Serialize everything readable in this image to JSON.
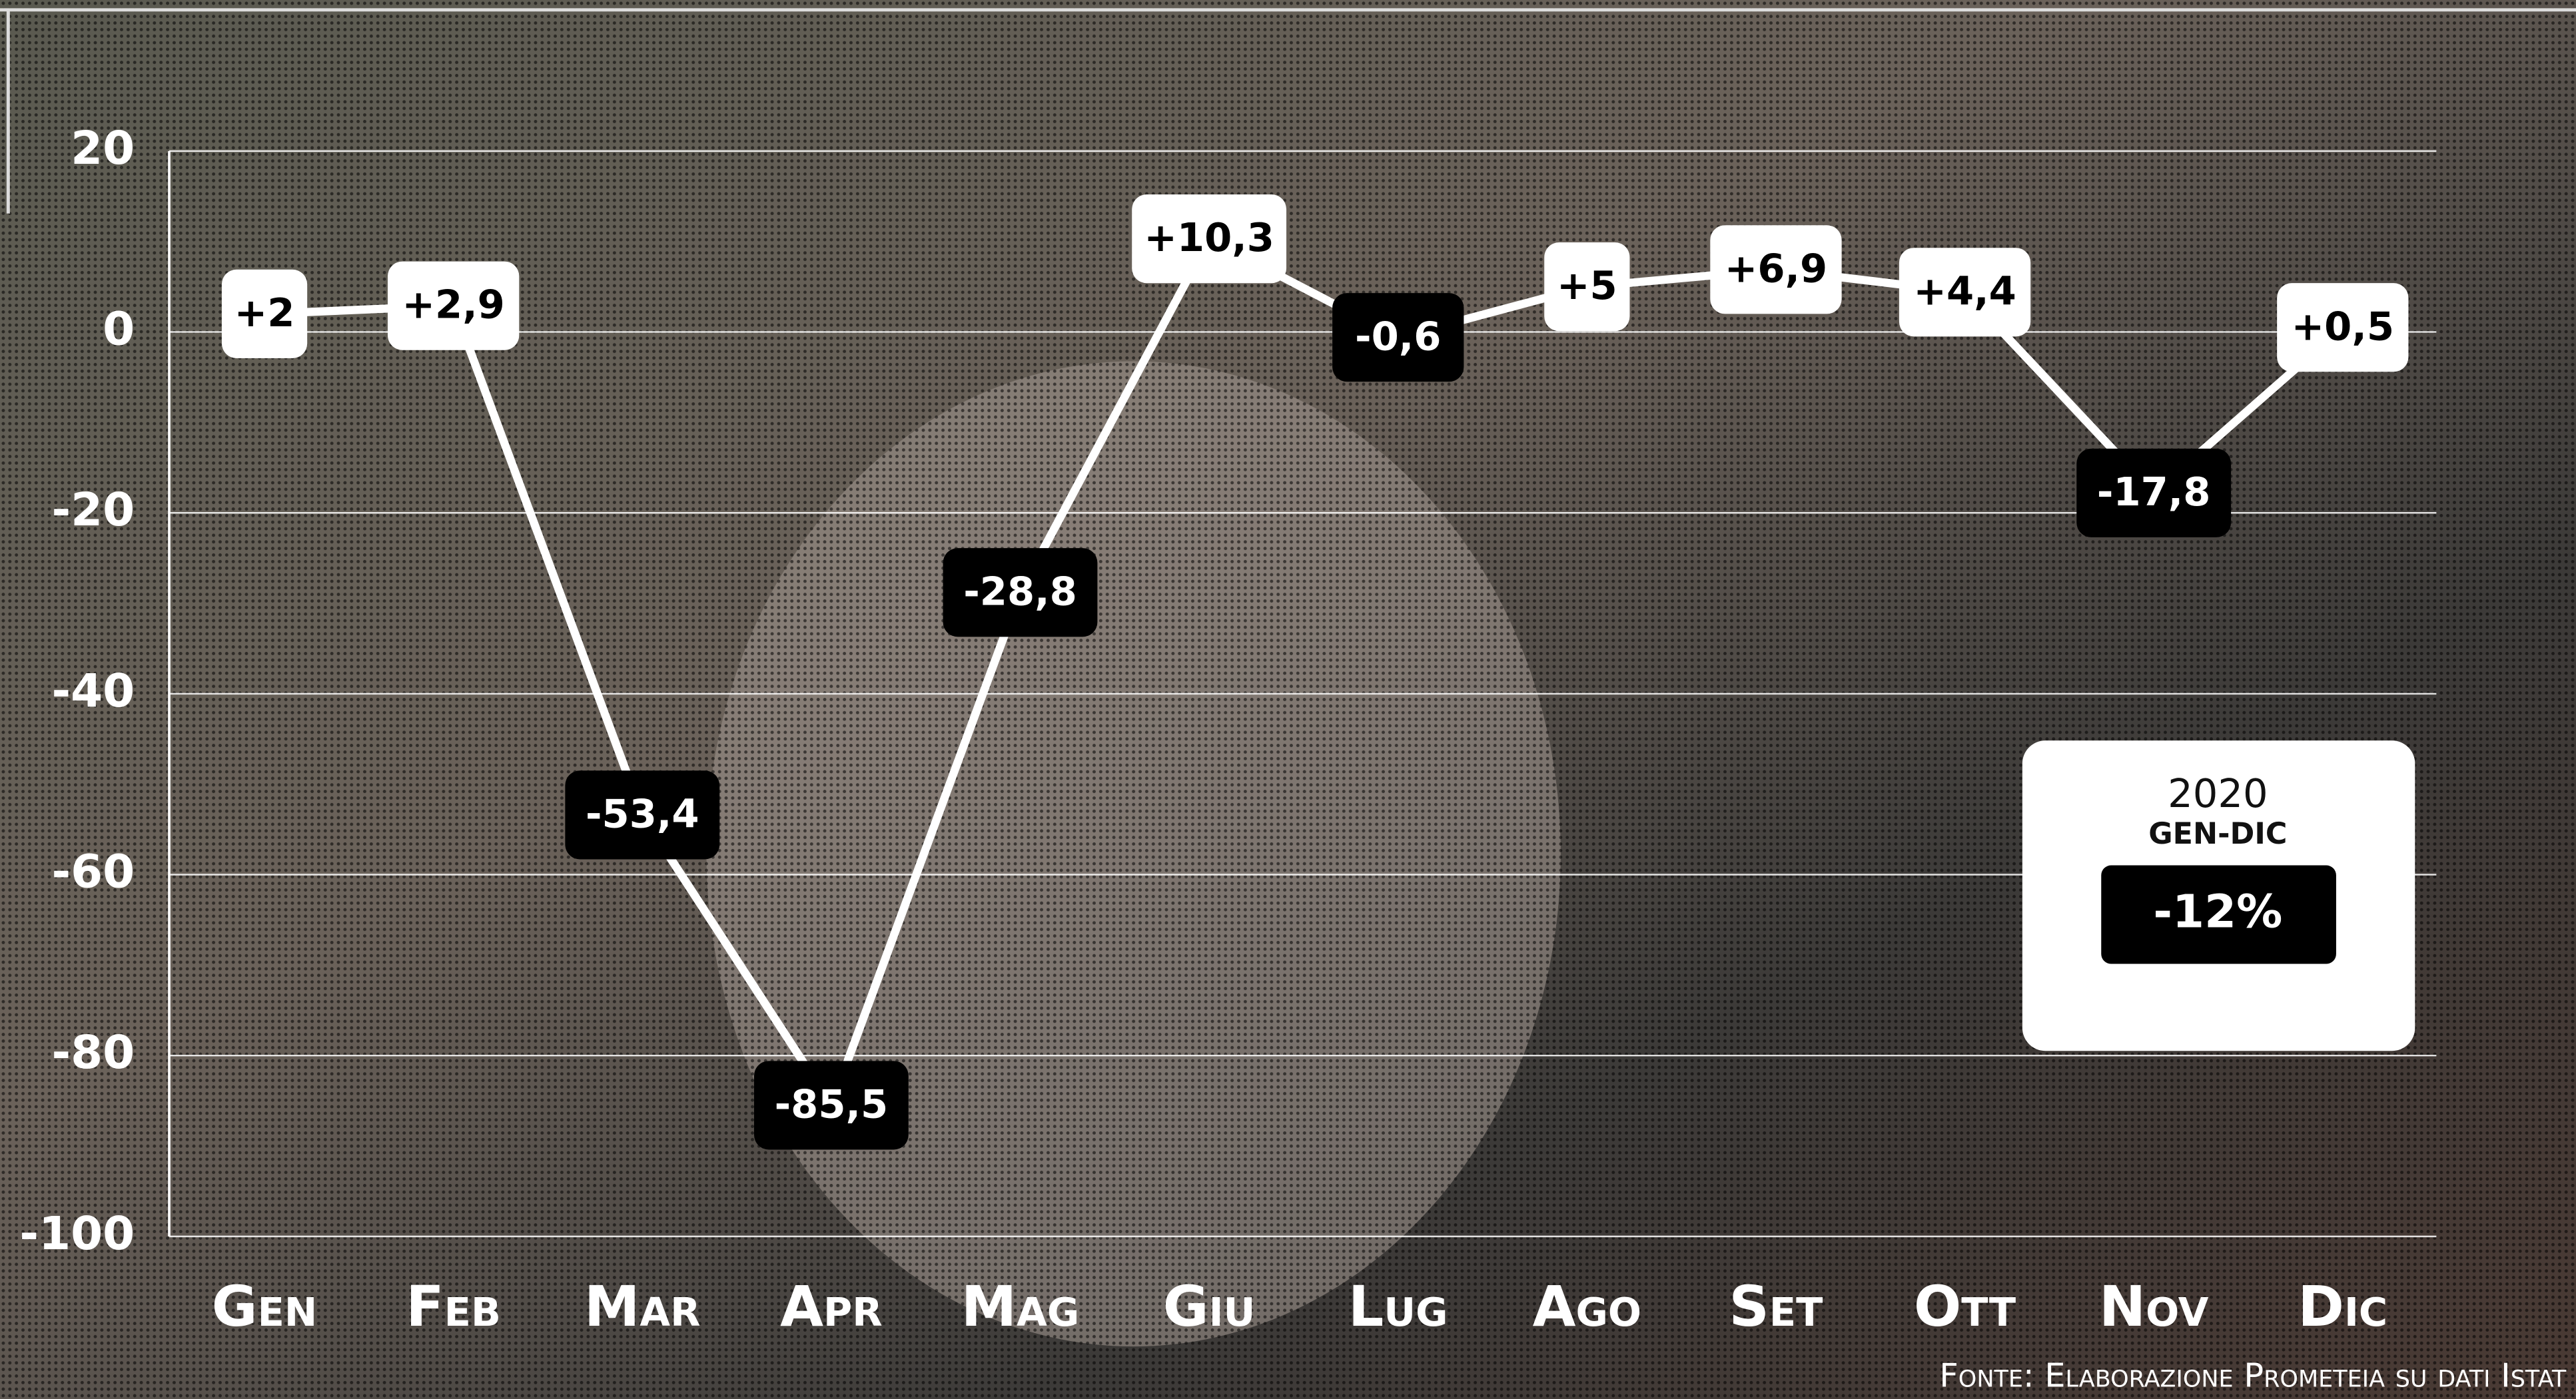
{
  "chart_data": {
    "type": "line",
    "categories": [
      "Gen",
      "Feb",
      "Mar",
      "Apr",
      "Mag",
      "Giu",
      "Lug",
      "Ago",
      "Set",
      "Ott",
      "Nov",
      "Dic"
    ],
    "values": [
      2,
      2.9,
      -53.4,
      -85.5,
      -28.8,
      10.3,
      -0.6,
      5,
      6.9,
      4.4,
      -17.8,
      0.5
    ],
    "value_labels": [
      "+2",
      "+2,9",
      "-53,4",
      "-85,5",
      "-28,8",
      "+10,3",
      "-0,6",
      "+5",
      "+6,9",
      "+4,4",
      "-17,8",
      "+0,5"
    ],
    "color": "#ffffff",
    "ylim": [
      -100,
      20
    ],
    "yticks": [
      20,
      0,
      -20,
      -40,
      -60,
      -80,
      -100
    ],
    "grid": true,
    "summary": {
      "year": "2020",
      "period": "GEN-DIC",
      "value": -12,
      "value_label": "-12%"
    },
    "source": "Fonte: Elaborazione Prometeia su dati Istat"
  }
}
